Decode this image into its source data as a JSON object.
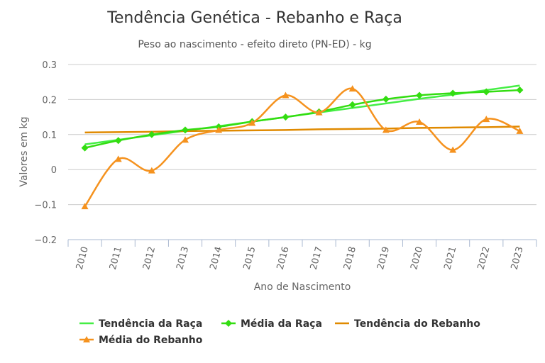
{
  "chart_data": {
    "type": "line",
    "title": "Tendência Genética - Rebanho e Raça",
    "subtitle": "Peso ao nascimento - efeito direto (PN-ED) - kg",
    "xlabel": "Ano de Nascimento",
    "ylabel": "Valores em kg",
    "categories": [
      "2010",
      "2011",
      "2012",
      "2013",
      "2014",
      "2015",
      "2016",
      "2017",
      "2018",
      "2019",
      "2020",
      "2021",
      "2022",
      "2023"
    ],
    "y_ticks": [
      "0.3",
      "0.2",
      "0.1",
      "0",
      "-0.1",
      "-0.2"
    ],
    "ylim": [
      -0.2,
      0.3
    ],
    "grid": true,
    "legend_position": "bottom",
    "series": [
      {
        "name": "Tendência da Raça",
        "kind": "trend",
        "color": "#44ee44",
        "marker": "none",
        "values": [
          0.072,
          0.085,
          0.098,
          0.111,
          0.124,
          0.137,
          0.15,
          0.163,
          0.176,
          0.189,
          0.202,
          0.214,
          0.227,
          0.24
        ]
      },
      {
        "name": "Média da Raça",
        "kind": "smooth",
        "color": "#33dd11",
        "marker": "diamond",
        "values": [
          0.062,
          0.083,
          0.1,
          0.113,
          0.122,
          0.137,
          0.15,
          0.165,
          0.185,
          0.201,
          0.212,
          0.218,
          0.222,
          0.227
        ]
      },
      {
        "name": "Tendência do Rebanho",
        "kind": "trend",
        "color": "#e08a00",
        "marker": "none",
        "values": [
          0.106,
          0.107,
          0.108,
          0.11,
          0.111,
          0.112,
          0.113,
          0.115,
          0.116,
          0.117,
          0.119,
          0.12,
          0.121,
          0.123
        ]
      },
      {
        "name": "Média do Rebanho",
        "kind": "smooth",
        "color": "#f5921e",
        "marker": "triangle",
        "values": [
          -0.105,
          0.03,
          -0.003,
          0.085,
          0.113,
          0.133,
          0.212,
          0.163,
          0.231,
          0.113,
          0.136,
          0.056,
          0.144,
          0.11
        ]
      }
    ]
  }
}
